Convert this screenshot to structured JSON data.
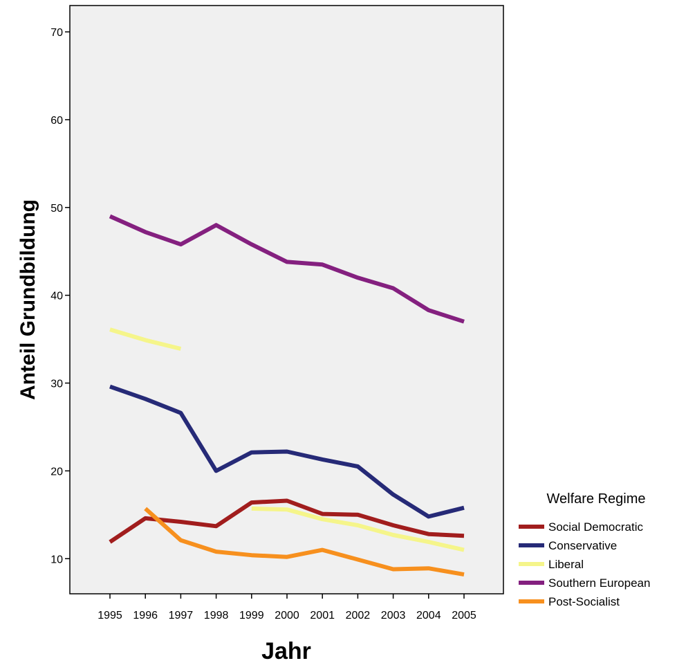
{
  "chart_data": {
    "type": "line",
    "xlabel": "Jahr",
    "ylabel": "Anteil Grundbildung",
    "ylim": [
      6,
      73
    ],
    "yticks": [
      10,
      20,
      30,
      40,
      50,
      60,
      70
    ],
    "categories": [
      "1995",
      "1996",
      "1997",
      "1998",
      "1999",
      "2000",
      "2001",
      "2002",
      "2003",
      "2004",
      "2005"
    ],
    "grid": false,
    "legend": {
      "title": "Welfare Regime",
      "position": "right"
    },
    "series": [
      {
        "name": "Social Democratic",
        "color": "#a11d1d",
        "values": [
          11.9,
          14.6,
          14.2,
          13.7,
          16.4,
          16.6,
          15.1,
          15.0,
          13.8,
          12.8,
          12.6
        ]
      },
      {
        "name": "Conservative",
        "color": "#262a77",
        "values": [
          29.6,
          28.2,
          26.6,
          20.0,
          22.1,
          22.2,
          21.3,
          20.5,
          17.3,
          14.8,
          15.8
        ]
      },
      {
        "name": "Liberal",
        "color": "#f5f58a",
        "values": [
          36.1,
          34.9,
          33.9,
          null,
          15.7,
          15.6,
          14.5,
          13.8,
          12.7,
          11.9,
          11.0
        ]
      },
      {
        "name": "Southern European",
        "color": "#84207f",
        "values": [
          49.0,
          47.2,
          45.8,
          48.0,
          45.8,
          43.8,
          43.5,
          42.0,
          40.8,
          38.3,
          37.0
        ]
      },
      {
        "name": "Post-Socialist",
        "color": "#f7901e",
        "values": [
          null,
          15.7,
          12.1,
          10.8,
          10.4,
          10.2,
          11.0,
          9.9,
          8.8,
          8.9,
          8.2
        ]
      }
    ]
  }
}
